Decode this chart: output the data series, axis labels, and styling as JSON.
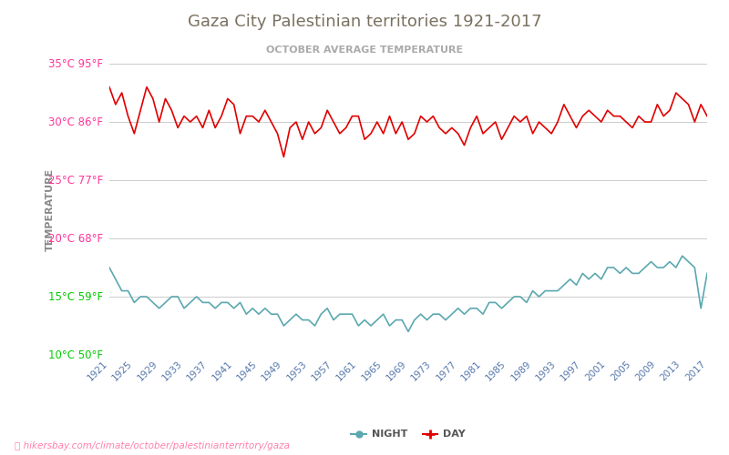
{
  "title": "Gaza City Palestinian territories 1921-2017",
  "subtitle": "OCTOBER AVERAGE TEMPERATURE",
  "ylabel": "TEMPERATURE",
  "watermark": "hikersbay.com/climate/october/palestinianterritory/gaza",
  "xmin": 1921,
  "xmax": 2017,
  "ymin": 10,
  "ymax": 35,
  "yticks_c": [
    10,
    15,
    20,
    25,
    30,
    35
  ],
  "yticks_f": [
    50,
    59,
    68,
    77,
    86,
    95
  ],
  "ytick_colors": [
    "#00cc00",
    "#00cc00",
    "#ff3399",
    "#ff3399",
    "#ff3399",
    "#ff3399"
  ],
  "day_color": "#e00000",
  "night_color": "#5ba8b0",
  "legend_night": "NIGHT",
  "legend_day": "DAY",
  "title_color": "#7a7060",
  "subtitle_color": "#aaaaaa",
  "years": [
    1921,
    1922,
    1923,
    1924,
    1925,
    1926,
    1927,
    1928,
    1929,
    1930,
    1931,
    1932,
    1933,
    1934,
    1935,
    1936,
    1937,
    1938,
    1939,
    1940,
    1941,
    1942,
    1943,
    1944,
    1945,
    1946,
    1947,
    1948,
    1949,
    1950,
    1951,
    1952,
    1953,
    1954,
    1955,
    1956,
    1957,
    1958,
    1959,
    1960,
    1961,
    1962,
    1963,
    1964,
    1965,
    1966,
    1967,
    1968,
    1969,
    1970,
    1971,
    1972,
    1973,
    1974,
    1975,
    1976,
    1977,
    1978,
    1979,
    1980,
    1981,
    1982,
    1983,
    1984,
    1985,
    1986,
    1987,
    1988,
    1989,
    1990,
    1991,
    1992,
    1993,
    1994,
    1995,
    1996,
    1997,
    1998,
    1999,
    2000,
    2001,
    2002,
    2003,
    2004,
    2005,
    2006,
    2007,
    2008,
    2009,
    2010,
    2011,
    2012,
    2013,
    2014,
    2015,
    2016,
    2017
  ],
  "day_temps": [
    33.0,
    31.5,
    32.5,
    30.5,
    29.0,
    31.0,
    33.0,
    32.0,
    30.0,
    32.0,
    31.0,
    29.5,
    30.5,
    30.0,
    30.5,
    29.5,
    31.0,
    29.5,
    30.5,
    32.0,
    31.5,
    29.0,
    30.5,
    30.5,
    30.0,
    31.0,
    30.0,
    29.0,
    27.0,
    29.5,
    30.0,
    28.5,
    30.0,
    29.0,
    29.5,
    31.0,
    30.0,
    29.0,
    29.5,
    30.5,
    30.5,
    28.5,
    29.0,
    30.0,
    29.0,
    30.5,
    29.0,
    30.0,
    28.5,
    29.0,
    30.5,
    30.0,
    30.5,
    29.5,
    29.0,
    29.5,
    29.0,
    28.0,
    29.5,
    30.5,
    29.0,
    29.5,
    30.0,
    28.5,
    29.5,
    30.5,
    30.0,
    30.5,
    29.0,
    30.0,
    29.5,
    29.0,
    30.0,
    31.5,
    30.5,
    29.5,
    30.5,
    31.0,
    30.5,
    30.0,
    31.0,
    30.5,
    30.5,
    30.0,
    29.5,
    30.5,
    30.0,
    30.0,
    31.5,
    30.5,
    31.0,
    32.5,
    32.0,
    31.5,
    30.0,
    31.5,
    30.5
  ],
  "night_temps": [
    17.5,
    16.5,
    15.5,
    15.5,
    14.5,
    15.0,
    15.0,
    14.5,
    14.0,
    14.5,
    15.0,
    15.0,
    14.0,
    14.5,
    15.0,
    14.5,
    14.5,
    14.0,
    14.5,
    14.5,
    14.0,
    14.5,
    13.5,
    14.0,
    13.5,
    14.0,
    13.5,
    13.5,
    12.5,
    13.0,
    13.5,
    13.0,
    13.0,
    12.5,
    13.5,
    14.0,
    13.0,
    13.5,
    13.5,
    13.5,
    12.5,
    13.0,
    12.5,
    13.0,
    13.5,
    12.5,
    13.0,
    13.0,
    12.0,
    13.0,
    13.5,
    13.0,
    13.5,
    13.5,
    13.0,
    13.5,
    14.0,
    13.5,
    14.0,
    14.0,
    13.5,
    14.5,
    14.5,
    14.0,
    14.5,
    15.0,
    15.0,
    14.5,
    15.5,
    15.0,
    15.5,
    15.5,
    15.5,
    16.0,
    16.5,
    16.0,
    17.0,
    16.5,
    17.0,
    16.5,
    17.5,
    17.5,
    17.0,
    17.5,
    17.0,
    17.0,
    17.5,
    18.0,
    17.5,
    17.5,
    18.0,
    17.5,
    18.5,
    18.0,
    17.5,
    14.0,
    17.0
  ]
}
